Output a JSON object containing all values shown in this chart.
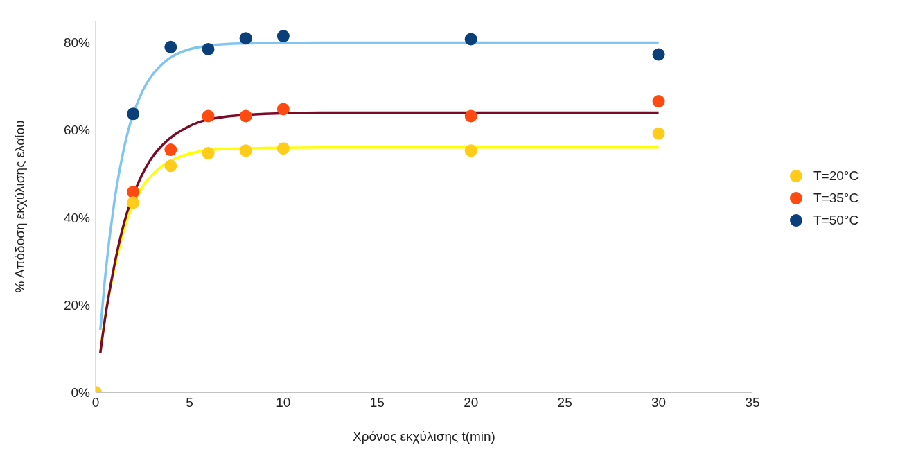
{
  "chart_data": {
    "type": "scatter",
    "xlabel": "Χρόνος εκχύλισης t(min)",
    "ylabel": "% Απόδοση εκχύλισης ελαίου",
    "xlim": [
      0,
      35
    ],
    "xticks": [
      0,
      5,
      10,
      15,
      20,
      25,
      30,
      35
    ],
    "ylim": [
      0,
      85
    ],
    "yticks": [
      {
        "value": 0,
        "label": "0%"
      },
      {
        "value": 20,
        "label": "20%"
      },
      {
        "value": 40,
        "label": "40%"
      },
      {
        "value": 60,
        "label": "60%"
      },
      {
        "value": 80,
        "label": "80%"
      }
    ],
    "grid": false,
    "legend": "right",
    "marker": "circle",
    "series": [
      {
        "type": "line",
        "marker": "none",
        "color": "#ffff00",
        "x": [
          0.25,
          0.5,
          1,
          1.5,
          2.5,
          3,
          3.5,
          5,
          7,
          9,
          12,
          15,
          25,
          30
        ],
        "values": [
          9.3,
          17.1,
          28.1,
          37,
          47,
          49.7,
          51.6,
          54.6,
          55.7,
          55.9,
          56,
          56,
          56,
          56
        ]
      },
      {
        "type": "line",
        "marker": "none",
        "color": "#7a0b26",
        "x": [
          0.25,
          0.5,
          1,
          1.5,
          2.5,
          3,
          3.5,
          5,
          7,
          9,
          12,
          15,
          25,
          30
        ],
        "values": [
          9,
          16.8,
          29.1,
          38.5,
          50,
          53.7,
          56.3,
          60.9,
          63.1,
          63.7,
          64,
          64,
          64,
          64
        ]
      },
      {
        "type": "line",
        "marker": "none",
        "color": "#80c4f2",
        "x": [
          0.25,
          0.5,
          1,
          1.5,
          2.5,
          3,
          3.5,
          5,
          7,
          9,
          12,
          15,
          25,
          30
        ],
        "values": [
          14.3,
          26.1,
          43.7,
          55.6,
          68.9,
          72.5,
          74.9,
          78.5,
          79.7,
          79.9,
          80,
          80,
          80,
          80
        ]
      },
      {
        "name": "T=20°C",
        "color": "#ffcc1a",
        "x": [
          0,
          2,
          4,
          6,
          8,
          10,
          20,
          30
        ],
        "values": [
          0,
          43.4,
          51.8,
          54.7,
          55.3,
          55.8,
          55.3,
          59.2
        ]
      },
      {
        "name": "T=35°C",
        "color": "#ff4a12",
        "x": [
          2,
          4,
          6,
          8,
          10,
          20,
          30
        ],
        "values": [
          45.8,
          55.5,
          63.2,
          63.2,
          64.8,
          63.2,
          66.6
        ]
      },
      {
        "name": "T=50°C",
        "color": "#0a3f7a",
        "x": [
          2,
          4,
          6,
          8,
          10,
          20,
          30
        ],
        "values": [
          63.7,
          79,
          78.5,
          81,
          81.5,
          80.8,
          77.3
        ]
      }
    ]
  }
}
